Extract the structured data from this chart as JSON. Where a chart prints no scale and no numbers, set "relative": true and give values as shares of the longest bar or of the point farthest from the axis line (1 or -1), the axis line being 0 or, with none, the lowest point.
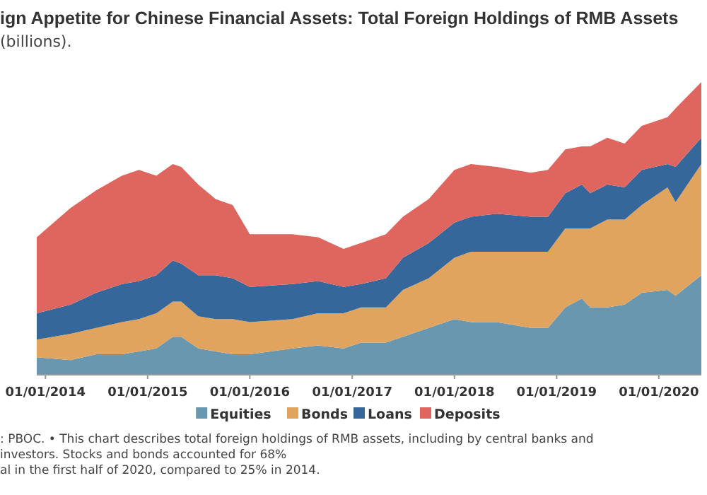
{
  "chart_data": {
    "type": "area",
    "stacked": true,
    "relative": true,
    "title": "ign Appetite for Chinese Financial Assets: Total Foreign Holdings of RMB Assets",
    "subtitle": "(billions).",
    "x": [
      "2013-12",
      "2014-04",
      "2014-07",
      "2014-10",
      "2014-12",
      "2015-02",
      "2015-04",
      "2015-05",
      "2015-07",
      "2015-09",
      "2015-11",
      "2016-01",
      "2016-06",
      "2016-09",
      "2016-12",
      "2017-02",
      "2017-05",
      "2017-07",
      "2017-10",
      "2018-01",
      "2018-03",
      "2018-06",
      "2018-10",
      "2018-12",
      "2019-02",
      "2019-04",
      "2019-05",
      "2019-07",
      "2019-09",
      "2019-11",
      "2020-02",
      "2020-03",
      "2020-06"
    ],
    "xlim": [
      "2013-12",
      "2020-06"
    ],
    "xticks": [
      {
        "value": "2014-01-01",
        "label": "01/01/2014"
      },
      {
        "value": "2015-01-01",
        "label": "01/01/2015"
      },
      {
        "value": "2016-01-01",
        "label": "01/01/2016"
      },
      {
        "value": "2017-01-01",
        "label": "01/01/2017"
      },
      {
        "value": "2018-01-01",
        "label": "01/01/2018"
      },
      {
        "value": "2019-01-01",
        "label": "01/01/2019"
      },
      {
        "value": "2020-01-01",
        "label": "01/01/2020"
      }
    ],
    "series": [
      {
        "name": "Equities",
        "color": "#6a97b0",
        "values": [
          0.06,
          0.05,
          0.07,
          0.07,
          0.08,
          0.09,
          0.13,
          0.13,
          0.09,
          0.08,
          0.07,
          0.07,
          0.09,
          0.1,
          0.09,
          0.11,
          0.11,
          0.13,
          0.16,
          0.19,
          0.18,
          0.18,
          0.16,
          0.16,
          0.23,
          0.26,
          0.23,
          0.23,
          0.24,
          0.28,
          0.29,
          0.27,
          0.34
        ]
      },
      {
        "name": "Bonds",
        "color": "#e0a45f",
        "values": [
          0.06,
          0.09,
          0.09,
          0.11,
          0.11,
          0.12,
          0.12,
          0.12,
          0.11,
          0.11,
          0.12,
          0.11,
          0.1,
          0.11,
          0.12,
          0.12,
          0.12,
          0.16,
          0.17,
          0.21,
          0.24,
          0.24,
          0.26,
          0.26,
          0.27,
          0.24,
          0.27,
          0.3,
          0.29,
          0.3,
          0.35,
          0.32,
          0.38
        ]
      },
      {
        "name": "Loans",
        "color": "#35679a",
        "values": [
          0.09,
          0.1,
          0.12,
          0.13,
          0.13,
          0.13,
          0.14,
          0.13,
          0.14,
          0.15,
          0.14,
          0.12,
          0.12,
          0.11,
          0.09,
          0.08,
          0.1,
          0.11,
          0.12,
          0.12,
          0.12,
          0.13,
          0.12,
          0.12,
          0.12,
          0.15,
          0.12,
          0.12,
          0.11,
          0.12,
          0.08,
          0.12,
          0.09
        ]
      },
      {
        "name": "Deposits",
        "color": "#de665e",
        "values": [
          0.26,
          0.33,
          0.35,
          0.37,
          0.38,
          0.34,
          0.33,
          0.33,
          0.31,
          0.26,
          0.25,
          0.18,
          0.17,
          0.15,
          0.13,
          0.14,
          0.15,
          0.14,
          0.15,
          0.18,
          0.18,
          0.16,
          0.15,
          0.16,
          0.15,
          0.13,
          0.16,
          0.16,
          0.15,
          0.15,
          0.16,
          0.2,
          0.19
        ]
      }
    ],
    "legend": "bottom",
    "annotations": [
      ": PBOC. • This chart describes total foreign holdings of RMB assets, including by central banks and investors. Stocks and bonds accounted for 68%",
      "al in the first half of 2020, compared to 25% in 2014."
    ]
  }
}
